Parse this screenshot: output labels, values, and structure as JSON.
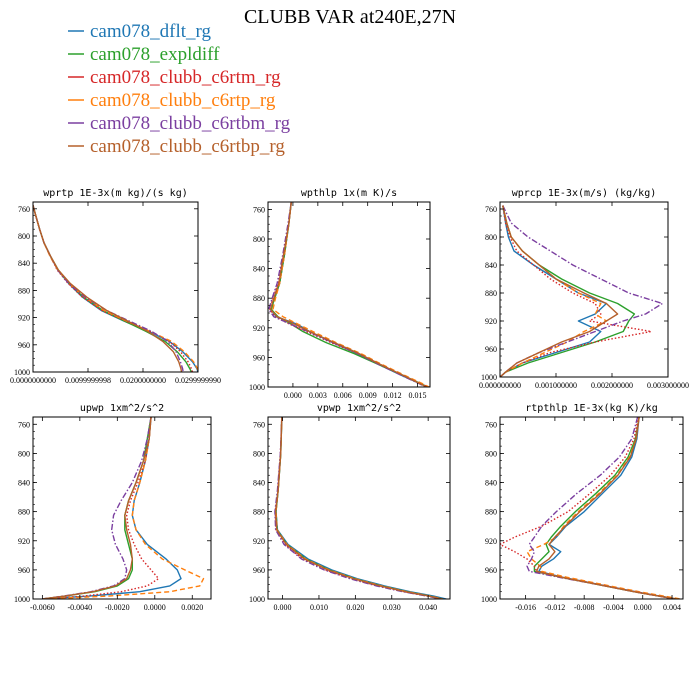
{
  "figure": {
    "title": "CLUBB VAR at240E,27N"
  },
  "legend": [
    {
      "name": "cam078_dflt_rg",
      "color": "#1f77b4",
      "dash": "solid"
    },
    {
      "name": "cam078_expldiff",
      "color": "#2ca02c",
      "dash": "solid"
    },
    {
      "name": "cam078_clubb_c6rtm_rg",
      "color": "#d62728",
      "dash": "dot"
    },
    {
      "name": "cam078_clubb_c6rtp_rg",
      "color": "#ff7f0e",
      "dash": "dash"
    },
    {
      "name": "cam078_clubb_c6rtbm_rg",
      "color": "#7b3fa0",
      "dash": "dashdot"
    },
    {
      "name": "cam078_clubb_c6rtbp_rg",
      "color": "#b5602b",
      "dash": "solid"
    }
  ],
  "chart_data": [
    {
      "type": "line",
      "title": "wprtp  1E-3x(m kg)/(s kg)",
      "xlim": [
        0,
        0.03
      ],
      "ylim": [
        1000,
        750
      ],
      "x_ticks": [
        0,
        0.0099999998,
        0.02,
        0.029999999
      ],
      "x_tick_labels": [
        "0.0000000000",
        "0.0099999998",
        "0.0200000000",
        "0.0299999990"
      ],
      "y_ticks": [
        760,
        800,
        840,
        880,
        920,
        960,
        1000
      ],
      "y": [
        755,
        770,
        790,
        810,
        830,
        850,
        870,
        890,
        910,
        925,
        940,
        955,
        970,
        985,
        995,
        1000
      ],
      "series": [
        {
          "name": "cam078_dflt_rg",
          "x": [
            0.0,
            0.0005,
            0.0012,
            0.002,
            0.0032,
            0.0045,
            0.0065,
            0.009,
            0.0125,
            0.0165,
            0.021,
            0.0248,
            0.0272,
            0.029,
            0.0298,
            0.03
          ]
        },
        {
          "name": "cam078_expldiff",
          "x": [
            0.0,
            0.0005,
            0.0012,
            0.002,
            0.0032,
            0.0046,
            0.0066,
            0.0092,
            0.0128,
            0.0166,
            0.0205,
            0.024,
            0.0262,
            0.0278,
            0.0285,
            0.0288
          ]
        },
        {
          "name": "cam078_clubb_c6rtm_rg",
          "x": [
            0.0,
            0.0005,
            0.0012,
            0.002,
            0.0032,
            0.0044,
            0.0064,
            0.009,
            0.0126,
            0.0168,
            0.0212,
            0.0248,
            0.0268,
            0.0282,
            0.0288,
            0.029
          ]
        },
        {
          "name": "cam078_clubb_c6rtp_rg",
          "x": [
            0.0,
            0.0005,
            0.0012,
            0.002,
            0.0031,
            0.0045,
            0.0066,
            0.0094,
            0.013,
            0.017,
            0.0212,
            0.0252,
            0.0275,
            0.0292,
            0.0299,
            0.03
          ]
        },
        {
          "name": "cam078_clubb_c6rtbm_rg",
          "x": [
            0.0,
            0.0005,
            0.0012,
            0.002,
            0.0032,
            0.0045,
            0.0065,
            0.0095,
            0.0135,
            0.0175,
            0.0215,
            0.0245,
            0.026,
            0.0268,
            0.0272,
            0.0273
          ]
        },
        {
          "name": "cam078_clubb_c6rtbp_rg",
          "x": [
            0.0,
            0.0005,
            0.0012,
            0.002,
            0.0032,
            0.0046,
            0.0068,
            0.0098,
            0.0135,
            0.0172,
            0.0208,
            0.0236,
            0.0255,
            0.0265,
            0.0269,
            0.027
          ]
        }
      ]
    },
    {
      "type": "line",
      "title": "wpthlp  1x(m K)/s",
      "xlim": [
        -0.003,
        0.0165
      ],
      "ylim": [
        1000,
        750
      ],
      "x_ticks": [
        0,
        0.003,
        0.006,
        0.009,
        0.012,
        0.015
      ],
      "x_tick_labels": [
        "0.000",
        "0.003",
        "0.006",
        "0.009",
        "0.012",
        "0.015"
      ],
      "y_ticks": [
        760,
        800,
        840,
        880,
        920,
        960,
        1000
      ],
      "y": [
        750,
        780,
        820,
        860,
        880,
        895,
        905,
        915,
        925,
        940,
        955,
        970,
        985,
        995,
        1000
      ],
      "series": [
        {
          "name": "cam078_dflt_rg",
          "x": [
            -0.0002,
            -0.0005,
            -0.001,
            -0.0016,
            -0.0022,
            -0.0027,
            -0.002,
            0.0005,
            0.002,
            0.0048,
            0.0078,
            0.0104,
            0.0132,
            0.0152,
            0.0162
          ]
        },
        {
          "name": "cam078_expldiff",
          "x": [
            -0.0002,
            -0.0005,
            -0.001,
            -0.0016,
            -0.0022,
            -0.0026,
            -0.0018,
            -0.0002,
            0.0012,
            0.004,
            0.0074,
            0.0104,
            0.0134,
            0.0153,
            0.0162
          ]
        },
        {
          "name": "cam078_clubb_c6rtm_rg",
          "x": [
            -0.0002,
            -0.0005,
            -0.0011,
            -0.0018,
            -0.0024,
            -0.0028,
            -0.0022,
            -0.0004,
            0.0016,
            0.0046,
            0.0078,
            0.0106,
            0.0134,
            0.0153,
            0.0163
          ]
        },
        {
          "name": "cam078_clubb_c6rtp_rg",
          "x": [
            -0.0002,
            -0.0005,
            -0.001,
            -0.0016,
            -0.0021,
            -0.0024,
            -0.0012,
            0.0006,
            0.0024,
            0.0052,
            0.0082,
            0.0108,
            0.0136,
            0.0155,
            0.0164
          ]
        },
        {
          "name": "cam078_clubb_c6rtbm_rg",
          "x": [
            -0.0002,
            -0.0006,
            -0.0012,
            -0.0019,
            -0.0025,
            -0.0029,
            -0.0023,
            -0.0003,
            0.0018,
            0.0048,
            0.0078,
            0.0104,
            0.0132,
            0.0151,
            0.016
          ]
        },
        {
          "name": "cam078_clubb_c6rtbp_rg",
          "x": [
            -0.0002,
            -0.0005,
            -0.0011,
            -0.0017,
            -0.0023,
            -0.0027,
            -0.0019,
            0.0002,
            0.002,
            0.005,
            0.008,
            0.0106,
            0.0134,
            0.0152,
            0.0161
          ]
        }
      ]
    },
    {
      "type": "line",
      "title": "wprcp  1E-3x(m/s) (kg/kg)",
      "xlim": [
        0,
        0.003
      ],
      "ylim": [
        1000,
        750
      ],
      "x_ticks": [
        0,
        0.001,
        0.002,
        0.003
      ],
      "x_tick_labels": [
        "0.000000000",
        "0.001000000",
        "0.002000000",
        "0.003000000"
      ],
      "y_ticks": [
        760,
        800,
        840,
        880,
        920,
        960,
        1000
      ],
      "y": [
        755,
        780,
        800,
        820,
        840,
        860,
        880,
        895,
        910,
        920,
        935,
        950,
        965,
        980,
        993,
        1000
      ],
      "series": [
        {
          "name": "cam078_dflt_rg",
          "x": [
            5e-05,
            0.0001,
            0.00015,
            0.00025,
            0.0006,
            0.001,
            0.0014,
            0.0019,
            0.0017,
            0.0014,
            0.0018,
            0.0016,
            0.001,
            0.0004,
            0.0001,
            0.0
          ]
        },
        {
          "name": "cam078_expldiff",
          "x": [
            5e-05,
            0.00012,
            0.0002,
            0.0004,
            0.0007,
            0.0011,
            0.0016,
            0.0021,
            0.0024,
            0.0023,
            0.0022,
            0.0017,
            0.0011,
            0.0005,
            0.0001,
            0.0
          ]
        },
        {
          "name": "cam078_clubb_c6rtm_rg",
          "x": [
            5e-05,
            0.0001,
            0.00018,
            0.0003,
            0.0006,
            0.0009,
            0.0013,
            0.0017,
            0.0018,
            0.0016,
            0.0027,
            0.0017,
            0.0009,
            0.0004,
            0.0001,
            0.0
          ]
        },
        {
          "name": "cam078_clubb_c6rtp_rg",
          "x": [
            5e-05,
            0.00012,
            0.0002,
            0.0004,
            0.0007,
            0.001,
            0.0014,
            0.0018,
            0.0017,
            0.0019,
            0.0015,
            0.0012,
            0.0008,
            0.0004,
            0.0001,
            0.0
          ]
        },
        {
          "name": "cam078_clubb_c6rtbm_rg",
          "x": [
            5e-05,
            0.0002,
            0.0005,
            0.0009,
            0.0013,
            0.0018,
            0.0023,
            0.0029,
            0.0026,
            0.0022,
            0.0017,
            0.0012,
            0.0007,
            0.0003,
            0.0001,
            0.0
          ]
        },
        {
          "name": "cam078_clubb_c6rtbp_rg",
          "x": [
            5e-05,
            0.00012,
            0.0002,
            0.0004,
            0.0007,
            0.001,
            0.0015,
            0.0019,
            0.0021,
            0.0019,
            0.0016,
            0.0011,
            0.0007,
            0.0003,
            0.0001,
            0.0
          ]
        }
      ]
    },
    {
      "type": "line",
      "title": "upwp  1xm^2/s^2",
      "xlim": [
        -0.0065,
        0.003
      ],
      "ylim": [
        1000,
        750
      ],
      "x_ticks": [
        -0.006,
        -0.004,
        -0.002,
        0,
        0.002
      ],
      "x_tick_labels": [
        "-0.0060",
        "-0.0040",
        "-0.0020",
        "0.0000",
        "0.0020"
      ],
      "y_ticks": [
        760,
        800,
        840,
        880,
        920,
        960,
        1000
      ],
      "y": [
        750,
        780,
        810,
        840,
        865,
        885,
        905,
        925,
        945,
        960,
        972,
        982,
        990,
        996,
        1000
      ],
      "series": [
        {
          "name": "cam078_dflt_rg",
          "x": [
            -0.0002,
            -0.0003,
            -0.0005,
            -0.0008,
            -0.0011,
            -0.0012,
            -0.001,
            -0.0004,
            0.0006,
            0.0012,
            0.0014,
            0.0008,
            -0.0008,
            -0.0035,
            -0.006
          ]
        },
        {
          "name": "cam078_expldiff",
          "x": [
            -0.0002,
            -0.0004,
            -0.0006,
            -0.001,
            -0.0014,
            -0.0016,
            -0.0016,
            -0.0014,
            -0.0012,
            -0.0012,
            -0.0014,
            -0.002,
            -0.0032,
            -0.0048,
            -0.006
          ]
        },
        {
          "name": "cam078_clubb_c6rtm_rg",
          "x": [
            -0.0002,
            -0.0003,
            -0.0005,
            -0.0009,
            -0.0013,
            -0.0015,
            -0.0014,
            -0.0011,
            -0.0007,
            -0.0002,
            0.0002,
            -0.0004,
            -0.0018,
            -0.0038,
            -0.006
          ]
        },
        {
          "name": "cam078_clubb_c6rtp_rg",
          "x": [
            -0.0002,
            -0.0003,
            -0.0005,
            -0.0008,
            -0.0011,
            -0.0012,
            -0.001,
            -0.0005,
            0.0004,
            0.0016,
            0.0026,
            0.0024,
            0.0008,
            -0.0025,
            -0.006
          ]
        },
        {
          "name": "cam078_clubb_c6rtbm_rg",
          "x": [
            -0.0002,
            -0.0004,
            -0.0007,
            -0.0012,
            -0.0018,
            -0.0022,
            -0.0023,
            -0.0021,
            -0.0017,
            -0.0015,
            -0.0016,
            -0.0022,
            -0.0034,
            -0.0049,
            -0.006
          ]
        },
        {
          "name": "cam078_clubb_c6rtbp_rg",
          "x": [
            -0.0002,
            -0.0003,
            -0.0006,
            -0.001,
            -0.0014,
            -0.0016,
            -0.0015,
            -0.0013,
            -0.0012,
            -0.0013,
            -0.0015,
            -0.0021,
            -0.0033,
            -0.0048,
            -0.006
          ]
        }
      ]
    },
    {
      "type": "line",
      "title": "vpwp  1xm^2/s^2",
      "xlim": [
        -0.004,
        0.046
      ],
      "ylim": [
        1000,
        750
      ],
      "x_ticks": [
        0,
        0.01,
        0.02,
        0.03,
        0.04
      ],
      "x_tick_labels": [
        "0.000",
        "0.010",
        "0.020",
        "0.030",
        "0.040"
      ],
      "y_ticks": [
        760,
        800,
        840,
        880,
        920,
        960,
        1000
      ],
      "y": [
        750,
        800,
        850,
        880,
        905,
        925,
        945,
        960,
        972,
        982,
        990,
        996,
        1000
      ],
      "series": [
        {
          "name": "cam078_dflt_rg",
          "x": [
            -0.0002,
            -0.0005,
            -0.0012,
            -0.0018,
            -0.0014,
            0.0015,
            0.007,
            0.0135,
            0.0205,
            0.028,
            0.035,
            0.0415,
            0.045
          ]
        },
        {
          "name": "cam078_expldiff",
          "x": [
            -0.0002,
            -0.0005,
            -0.0012,
            -0.0018,
            -0.0015,
            0.0012,
            0.0064,
            0.0128,
            0.0198,
            0.0272,
            0.0342,
            0.0405,
            0.044
          ]
        },
        {
          "name": "cam078_clubb_c6rtm_rg",
          "x": [
            -0.0002,
            -0.0006,
            -0.0013,
            -0.002,
            -0.0018,
            0.0006,
            0.0055,
            0.0118,
            0.0188,
            0.0262,
            0.0334,
            0.04,
            0.0438
          ]
        },
        {
          "name": "cam078_clubb_c6rtp_rg",
          "x": [
            -0.0002,
            -0.0005,
            -0.0012,
            -0.0018,
            -0.0015,
            0.0012,
            0.0063,
            0.0127,
            0.0198,
            0.0272,
            0.0342,
            0.0405,
            0.044
          ]
        },
        {
          "name": "cam078_clubb_c6rtbm_rg",
          "x": [
            -0.0002,
            -0.0006,
            -0.0014,
            -0.0021,
            -0.0019,
            0.0004,
            0.0052,
            0.0114,
            0.0184,
            0.0258,
            0.033,
            0.0397,
            0.0435
          ]
        },
        {
          "name": "cam078_clubb_c6rtbp_rg",
          "x": [
            -0.0002,
            -0.0005,
            -0.0012,
            -0.0019,
            -0.0016,
            0.001,
            0.006,
            0.0124,
            0.0194,
            0.0268,
            0.0338,
            0.0402,
            0.0438
          ]
        }
      ]
    },
    {
      "type": "line",
      "title": "rtpthlp  1E-3x(kg K)/kg",
      "xlim": [
        -0.0195,
        0.0055
      ],
      "ylim": [
        1000,
        750
      ],
      "x_ticks": [
        -0.016,
        -0.012,
        -0.008,
        -0.004,
        0,
        0.004
      ],
      "x_tick_labels": [
        "-0.016",
        "-0.012",
        "-0.008",
        "-0.004",
        "0.000",
        "0.004"
      ],
      "y_ticks": [
        760,
        800,
        840,
        880,
        920,
        960,
        1000
      ],
      "y": [
        750,
        780,
        805,
        830,
        855,
        880,
        900,
        915,
        925,
        935,
        945,
        955,
        962,
        970,
        980,
        990,
        1000
      ],
      "series": [
        {
          "name": "cam078_dflt_rg",
          "x": [
            -0.0005,
            -0.0008,
            -0.0015,
            -0.003,
            -0.0055,
            -0.008,
            -0.0105,
            -0.0118,
            -0.0128,
            -0.0112,
            -0.0122,
            -0.0138,
            -0.0142,
            -0.011,
            -0.006,
            -0.001,
            0.0045
          ]
        },
        {
          "name": "cam078_expldiff",
          "x": [
            -0.0005,
            -0.001,
            -0.002,
            -0.0038,
            -0.0064,
            -0.0092,
            -0.0112,
            -0.0125,
            -0.0132,
            -0.0128,
            -0.0138,
            -0.0148,
            -0.0148,
            -0.0112,
            -0.0062,
            -0.0012,
            0.0045
          ]
        },
        {
          "name": "cam078_clubb_c6rtm_rg",
          "x": [
            -0.0006,
            -0.0012,
            -0.0024,
            -0.0044,
            -0.0072,
            -0.0102,
            -0.0138,
            -0.0175,
            -0.0195,
            -0.0175,
            -0.0158,
            -0.0148,
            -0.0145,
            -0.011,
            -0.006,
            -0.001,
            0.0046
          ]
        },
        {
          "name": "cam078_clubb_c6rtp_rg",
          "x": [
            -0.0005,
            -0.0009,
            -0.0018,
            -0.0035,
            -0.006,
            -0.0088,
            -0.0108,
            -0.0118,
            -0.0135,
            -0.0158,
            -0.0152,
            -0.014,
            -0.0138,
            -0.0104,
            -0.0055,
            -0.0005,
            0.0052
          ]
        },
        {
          "name": "cam078_clubb_c6rtbm_rg",
          "x": [
            -0.0007,
            -0.0015,
            -0.0032,
            -0.0058,
            -0.009,
            -0.0118,
            -0.0138,
            -0.0148,
            -0.0155,
            -0.0148,
            -0.0152,
            -0.0158,
            -0.0155,
            -0.0115,
            -0.0062,
            -0.0012,
            0.0044
          ]
        },
        {
          "name": "cam078_clubb_c6rtbp_rg",
          "x": [
            -0.0005,
            -0.0009,
            -0.0017,
            -0.0034,
            -0.0058,
            -0.0086,
            -0.0106,
            -0.012,
            -0.0128,
            -0.012,
            -0.0128,
            -0.0142,
            -0.0145,
            -0.0112,
            -0.0062,
            -0.0012,
            0.0045
          ]
        }
      ]
    }
  ]
}
